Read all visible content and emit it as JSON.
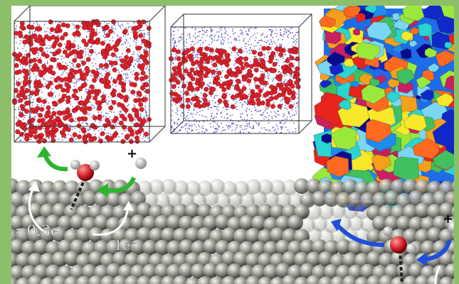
{
  "labels": {
    "left_charge": "≈0.3e⁻",
    "right_charge": "1e⁻",
    "plus_left": "+",
    "plus_right": "+"
  }
}
